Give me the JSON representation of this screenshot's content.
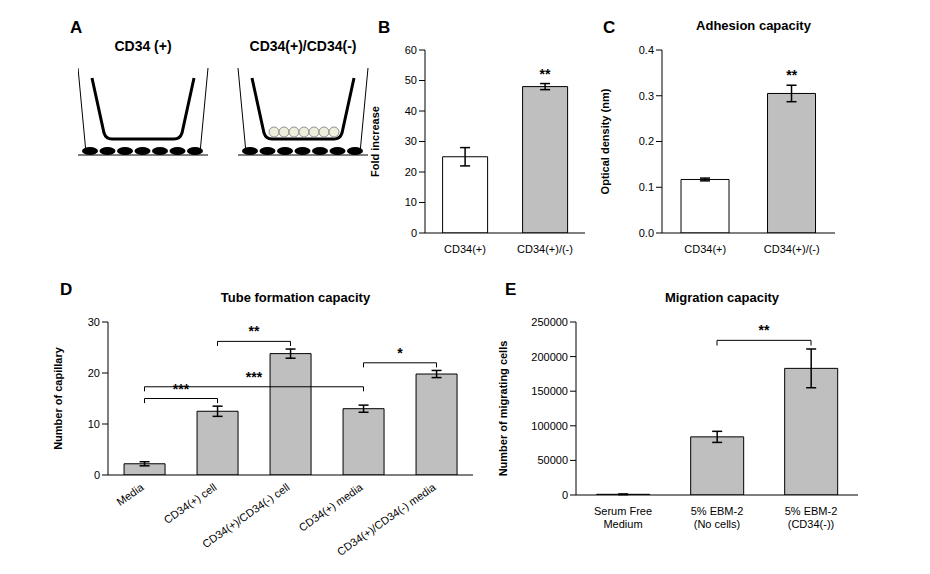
{
  "diagram": {
    "panel": "A",
    "labels": [
      "CD34 (+)",
      "CD34(+)/CD34(-)"
    ]
  },
  "chart_data": [
    {
      "panel": "B",
      "type": "bar",
      "y_label": "Fold increase",
      "categories": [
        "CD34(+)",
        "CD34(+)/(-)"
      ],
      "values": [
        25,
        48
      ],
      "errors": [
        3,
        1
      ],
      "colors": [
        "#ffffff",
        "#bfbfbf"
      ],
      "ylim": [
        0,
        60
      ],
      "yticks": [
        0,
        10,
        20,
        30,
        40,
        50,
        60
      ],
      "annotations": [
        {
          "category": "CD34(+)/(-)",
          "label": "**"
        }
      ]
    },
    {
      "panel": "C",
      "type": "bar",
      "title": "Adhesion capacity",
      "y_label": "Optical density (nm)",
      "categories": [
        "CD34(+)",
        "CD34(+)/(-)"
      ],
      "values": [
        0.117,
        0.305
      ],
      "errors": [
        0.003,
        0.018
      ],
      "colors": [
        "#ffffff",
        "#bfbfbf"
      ],
      "ylim": [
        0,
        0.4
      ],
      "yticks": [
        {
          "value": 0,
          "label": "0.0"
        },
        0.1,
        0.2,
        0.3,
        0.4
      ],
      "annotations": [
        {
          "category": "CD34(+)/(-)",
          "label": "**"
        }
      ]
    },
    {
      "panel": "D",
      "type": "bar",
      "title": "Tube formation capacity",
      "y_label": "Number of capillary",
      "categories": [
        "Media",
        "CD34(+) cell",
        "CD34(+)/CD34(-) cell",
        "CD34(+) media",
        "CD34(+)/CD34(-) media"
      ],
      "values": [
        2.2,
        12.5,
        23.8,
        13,
        19.8
      ],
      "errors": [
        0.4,
        1,
        0.9,
        0.7,
        0.7
      ],
      "colors": [
        "#bfbfbf",
        "#bfbfbf",
        "#bfbfbf",
        "#bfbfbf",
        "#bfbfbf"
      ],
      "ylim": [
        0,
        30
      ],
      "yticks": [
        0,
        10,
        20,
        30
      ],
      "brackets": [
        {
          "from": "Media",
          "to": "CD34(+) cell",
          "label": "***"
        },
        {
          "from": "CD34(+) cell",
          "to": "CD34(+)/CD34(-) cell",
          "label": "**"
        },
        {
          "from": "Media",
          "to": "CD34(+) media",
          "label": "***"
        },
        {
          "from": "CD34(+) media",
          "to": "CD34(+)/CD34(-) media",
          "label": "*"
        }
      ]
    },
    {
      "panel": "E",
      "type": "bar",
      "title": "Migration capacity",
      "y_label": "Number of migrating cells",
      "categories": [
        "Serum Free\nMedium",
        "5% EBM-2\n(No cells)",
        "5% EBM-2\n(CD34(-))"
      ],
      "values": [
        1000,
        84000,
        183000
      ],
      "errors": [
        500,
        8000,
        28000
      ],
      "colors": [
        "#bfbfbf",
        "#bfbfbf",
        "#bfbfbf"
      ],
      "ylim": [
        0,
        250000
      ],
      "yticks": [
        0,
        50000,
        100000,
        150000,
        200000,
        250000
      ],
      "brackets": [
        {
          "from": "5% EBM-2\n(No cells)",
          "to": "5% EBM-2\n(CD34(-))",
          "label": "**"
        }
      ]
    }
  ]
}
